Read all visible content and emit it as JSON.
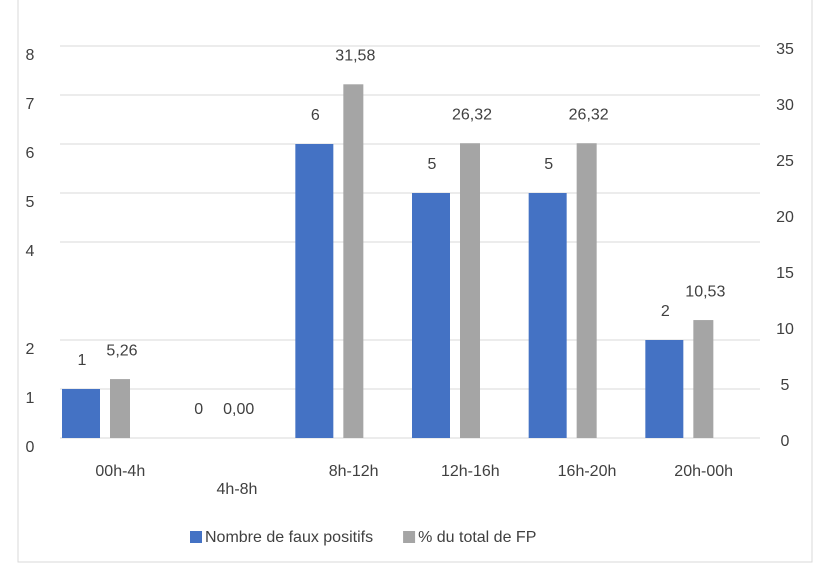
{
  "chart_data": {
    "type": "bar",
    "categories": [
      "00h-4h",
      "4h-8h",
      "8h-12h",
      "12h-16h",
      "16h-20h",
      "20h-00h"
    ],
    "series": [
      {
        "name": "Nombre de faux positifs",
        "color": "#4472c4",
        "values": [
          1,
          0,
          6,
          5,
          5,
          2
        ]
      },
      {
        "name": "% du total de FP",
        "color": "#a5a5a5",
        "axis": "y2",
        "values": [
          5.26,
          0,
          31.58,
          26.32,
          26.32,
          10.53
        ],
        "value_labels": [
          "5,26",
          "0,00",
          "31,58",
          "26,32",
          "26,32",
          "10,53"
        ]
      }
    ],
    "ylim": [
      0,
      8
    ],
    "yticks": [
      0,
      1,
      2,
      4,
      5,
      6,
      7,
      8
    ],
    "y2lim": [
      0,
      35
    ],
    "y2ticks": [
      0,
      5,
      10,
      15,
      20,
      25,
      30,
      35
    ],
    "grid": true,
    "legend": "bottom"
  }
}
